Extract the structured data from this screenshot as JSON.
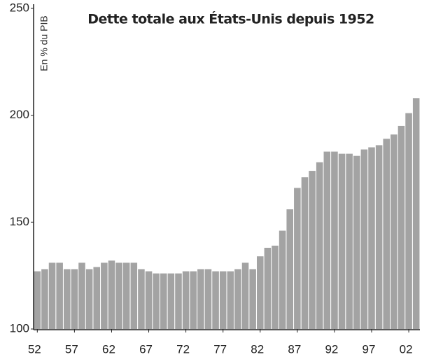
{
  "chart_data": {
    "type": "bar",
    "title": "Dette totale aux États-Unis depuis 1952",
    "y_label": "En % du PIB",
    "categories": [
      "52",
      null,
      null,
      null,
      null,
      "57",
      null,
      null,
      null,
      null,
      "62",
      null,
      null,
      null,
      null,
      "67",
      null,
      null,
      null,
      null,
      "72",
      null,
      null,
      null,
      null,
      "77",
      null,
      null,
      null,
      null,
      "82",
      null,
      null,
      null,
      null,
      "87",
      null,
      null,
      null,
      null,
      "92",
      null,
      null,
      null,
      null,
      "97",
      null,
      null,
      null,
      null,
      "02",
      null
    ],
    "values": [
      127,
      128,
      131,
      131,
      128,
      128,
      131,
      128,
      129,
      131,
      132,
      131,
      131,
      131,
      128,
      127,
      126,
      126,
      126,
      126,
      127,
      127,
      128,
      128,
      127,
      127,
      127,
      128,
      131,
      128,
      134,
      138,
      139,
      146,
      156,
      166,
      171,
      174,
      178,
      183,
      183,
      182,
      182,
      181,
      184,
      185,
      186,
      189,
      191,
      195,
      201,
      208
    ],
    "color": "#a3a3a3",
    "ylim": [
      100,
      250
    ],
    "yticks": [
      100,
      150,
      200,
      250
    ],
    "grid": false
  }
}
